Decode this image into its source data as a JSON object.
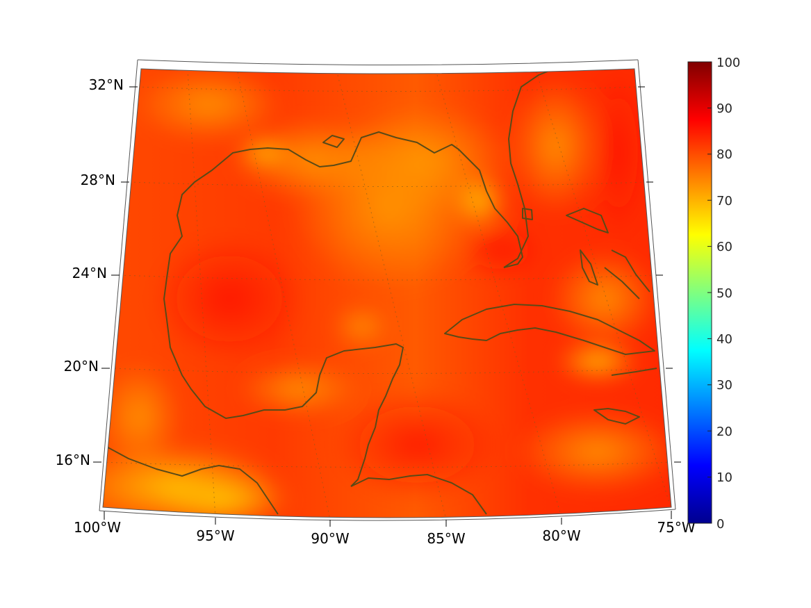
{
  "map": {
    "lat_labels": [
      "32°N",
      "28°N",
      "24°N",
      "20°N",
      "16°N"
    ],
    "lon_labels": [
      "100°W",
      "95°W",
      "90°W",
      "85°W",
      "80°W",
      "75°W"
    ],
    "lat_values": [
      32,
      28,
      24,
      20,
      16
    ],
    "lon_values": [
      -100,
      -95,
      -90,
      -85,
      -80,
      -75
    ],
    "extent": {
      "lon_min": -100,
      "lon_max": -75,
      "lat_min": 14,
      "lat_max": 33
    },
    "projection": "conic",
    "coastline_color": "#5a4a17",
    "graticule": "dotted"
  },
  "colorbar": {
    "min": 0,
    "max": 100,
    "tick_labels": [
      "100",
      "90",
      "80",
      "70",
      "60",
      "50",
      "40",
      "30",
      "20",
      "10",
      "0"
    ],
    "tick_values": [
      100,
      90,
      80,
      70,
      60,
      50,
      40,
      30,
      20,
      10,
      0
    ],
    "colormap": "jet"
  },
  "field": {
    "dominant_range": [
      72,
      92
    ],
    "colors": {
      "low_warm": "#ffcc00",
      "mid": "#ff8c00",
      "high": "#ff3300"
    }
  }
}
